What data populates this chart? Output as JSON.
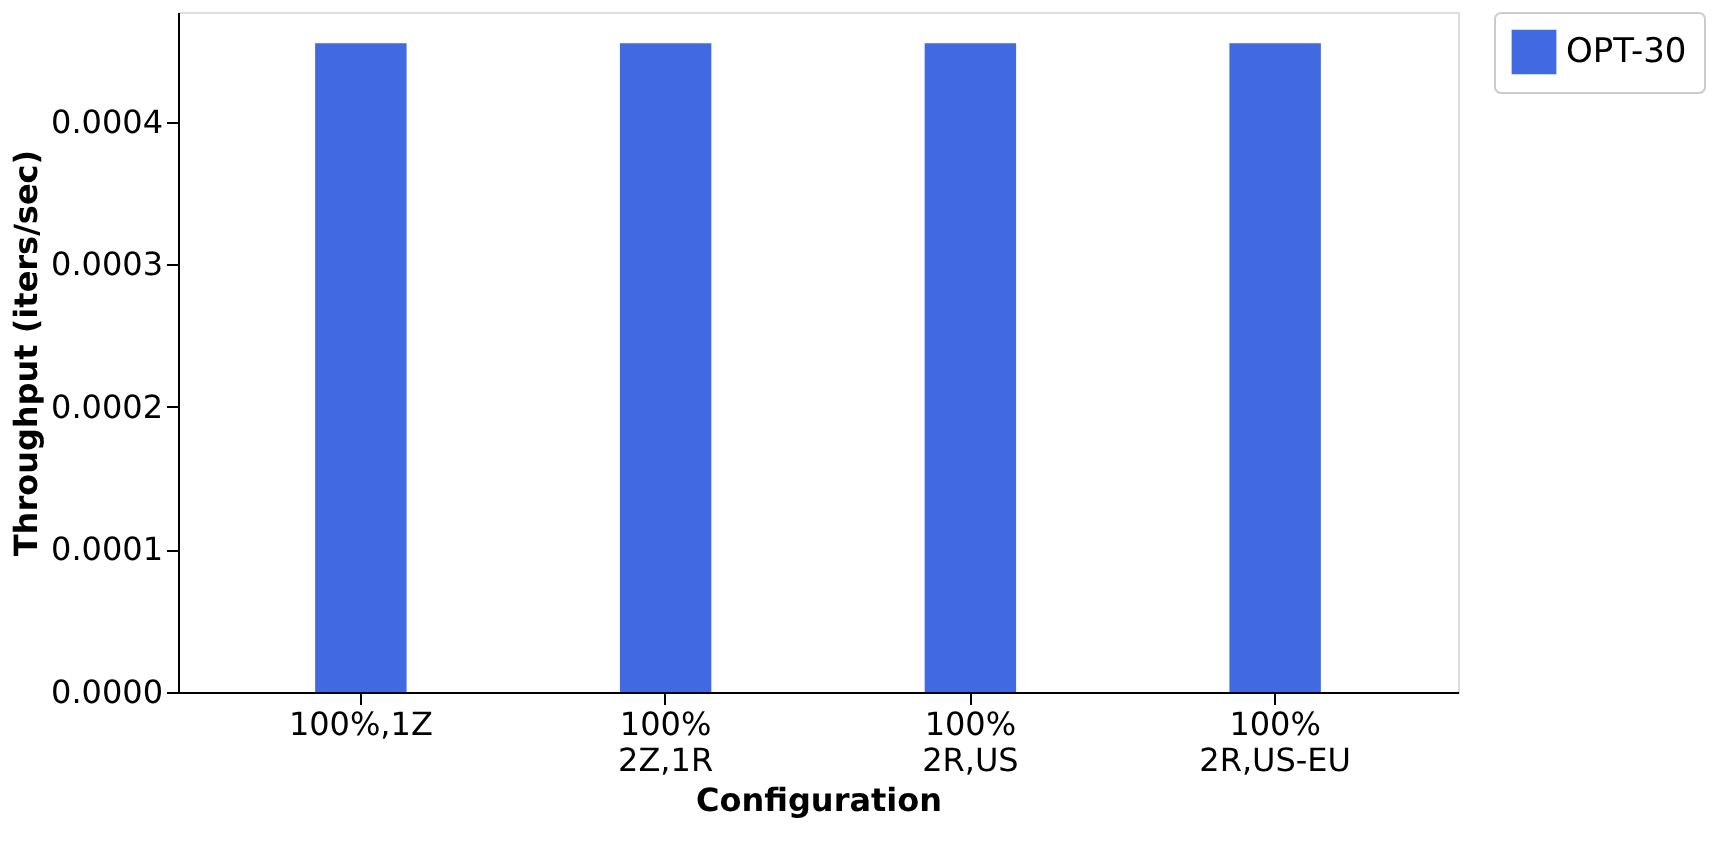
{
  "chart_data": {
    "type": "bar",
    "xlabel": "Configuration",
    "ylabel": "Throughput (iters/sec)",
    "categories": [
      "100%,1Z",
      "100%\n2Z,1R",
      "100%\n2R,US",
      "100%\n2R,US-EU"
    ],
    "series": [
      {
        "name": "OPT-30",
        "color": "#4169e1",
        "values": [
          0.000455,
          0.000455,
          0.000455,
          0.000455
        ]
      }
    ],
    "ylim": [
      0,
      0.000477
    ],
    "yticks": [
      {
        "value": 0,
        "label": "0.0000"
      },
      {
        "value": 0.0001,
        "label": "0.0001"
      },
      {
        "value": 0.0002,
        "label": "0.0002"
      },
      {
        "value": 0.0003,
        "label": "0.0003"
      },
      {
        "value": 0.0004,
        "label": "0.0004"
      }
    ],
    "grid": false,
    "legend": "top right"
  }
}
